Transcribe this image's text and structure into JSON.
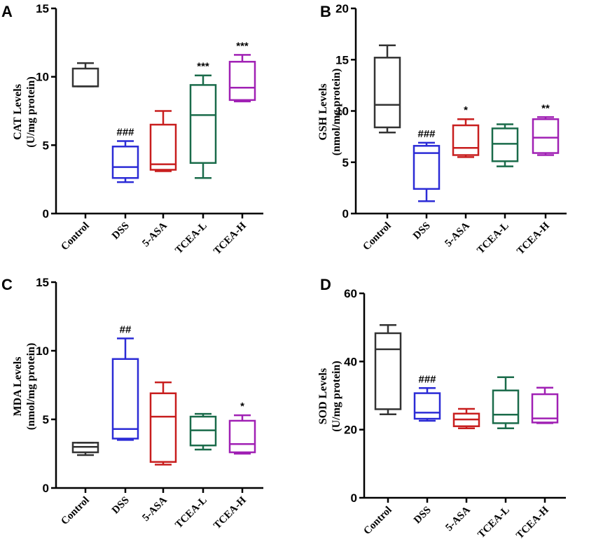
{
  "colors": {
    "Control": "#333333",
    "DSS": "#2b2bd6",
    "5-ASA": "#c81e1e",
    "TCEA-L": "#1a6b4a",
    "TCEA-H": "#a020b4"
  },
  "chart_data": [
    {
      "panel": "A",
      "type": "box",
      "ylabel_line1": "CAT  Levels",
      "ylabel_line2": "(U/mg protein)",
      "ylim": [
        0,
        15
      ],
      "yticks": [
        0,
        5,
        10,
        15
      ],
      "categories": [
        "Control",
        "DSS",
        "5-ASA",
        "TCEA-L",
        "TCEA-H"
      ],
      "boxes": [
        {
          "min": 9.3,
          "q1": 9.3,
          "median": 9.3,
          "q3": 10.6,
          "max": 11.0,
          "sig": ""
        },
        {
          "min": 2.3,
          "q1": 2.6,
          "median": 3.4,
          "q3": 4.9,
          "max": 5.3,
          "sig": "###"
        },
        {
          "min": 3.1,
          "q1": 3.2,
          "median": 3.6,
          "q3": 6.5,
          "max": 7.5,
          "sig": ""
        },
        {
          "min": 2.6,
          "q1": 3.7,
          "median": 7.2,
          "q3": 9.4,
          "max": 10.1,
          "sig": "***"
        },
        {
          "min": 8.2,
          "q1": 8.3,
          "median": 9.2,
          "q3": 11.1,
          "max": 11.6,
          "sig": "***"
        }
      ]
    },
    {
      "panel": "B",
      "type": "box",
      "ylabel_line1": "GSH  Levels",
      "ylabel_line2": "(nmol/mg protein)",
      "ylim": [
        0,
        20
      ],
      "yticks": [
        0,
        5,
        10,
        15,
        20
      ],
      "categories": [
        "Control",
        "DSS",
        "5-ASA",
        "TCEA-L",
        "TCEA-H"
      ],
      "boxes": [
        {
          "min": 7.9,
          "q1": 8.4,
          "median": 10.6,
          "q3": 15.2,
          "max": 16.4,
          "sig": ""
        },
        {
          "min": 1.2,
          "q1": 2.4,
          "median": 5.9,
          "q3": 6.6,
          "max": 6.9,
          "sig": "###"
        },
        {
          "min": 5.5,
          "q1": 5.7,
          "median": 6.4,
          "q3": 8.6,
          "max": 9.2,
          "sig": "*"
        },
        {
          "min": 4.6,
          "q1": 5.1,
          "median": 6.8,
          "q3": 8.3,
          "max": 8.7,
          "sig": ""
        },
        {
          "min": 5.7,
          "q1": 5.9,
          "median": 7.4,
          "q3": 9.2,
          "max": 9.4,
          "sig": "**"
        }
      ]
    },
    {
      "panel": "C",
      "type": "box",
      "ylabel_line1": "MDA Levels",
      "ylabel_line2": "(nmol/mg protein)",
      "ylim": [
        0,
        15
      ],
      "yticks": [
        0,
        5,
        10,
        15
      ],
      "categories": [
        "Control",
        "DSS",
        "5-ASA",
        "TCEA-L",
        "TCEA-H"
      ],
      "boxes": [
        {
          "min": 2.4,
          "q1": 2.6,
          "median": 3.0,
          "q3": 3.3,
          "max": 3.3,
          "sig": ""
        },
        {
          "min": 3.5,
          "q1": 3.6,
          "median": 4.3,
          "q3": 9.4,
          "max": 10.9,
          "sig": "##"
        },
        {
          "min": 1.7,
          "q1": 1.9,
          "median": 5.2,
          "q3": 6.9,
          "max": 7.7,
          "sig": ""
        },
        {
          "min": 2.8,
          "q1": 3.1,
          "median": 4.2,
          "q3": 5.2,
          "max": 5.4,
          "sig": ""
        },
        {
          "min": 2.5,
          "q1": 2.6,
          "median": 3.2,
          "q3": 4.9,
          "max": 5.3,
          "sig": "*"
        }
      ]
    },
    {
      "panel": "D",
      "type": "box",
      "ylabel_line1": "SOD Levels",
      "ylabel_line2": "(U/mg protein)",
      "ylim": [
        0,
        60
      ],
      "yticks": [
        0,
        20,
        40,
        60
      ],
      "categories": [
        "Control",
        "DSS",
        "5-ASA",
        "TCEA-L",
        "TCEA-H"
      ],
      "boxes": [
        {
          "min": 24.5,
          "q1": 26.0,
          "median": 43.6,
          "q3": 48.3,
          "max": 50.7,
          "sig": ""
        },
        {
          "min": 22.6,
          "q1": 23.2,
          "median": 25.0,
          "q3": 30.7,
          "max": 32.2,
          "sig": "###"
        },
        {
          "min": 20.4,
          "q1": 21.0,
          "median": 23.0,
          "q3": 24.7,
          "max": 26.1,
          "sig": ""
        },
        {
          "min": 20.4,
          "q1": 21.9,
          "median": 24.4,
          "q3": 31.5,
          "max": 35.4,
          "sig": ""
        },
        {
          "min": 21.9,
          "q1": 22.1,
          "median": 23.3,
          "q3": 30.4,
          "max": 32.3,
          "sig": ""
        }
      ]
    }
  ]
}
